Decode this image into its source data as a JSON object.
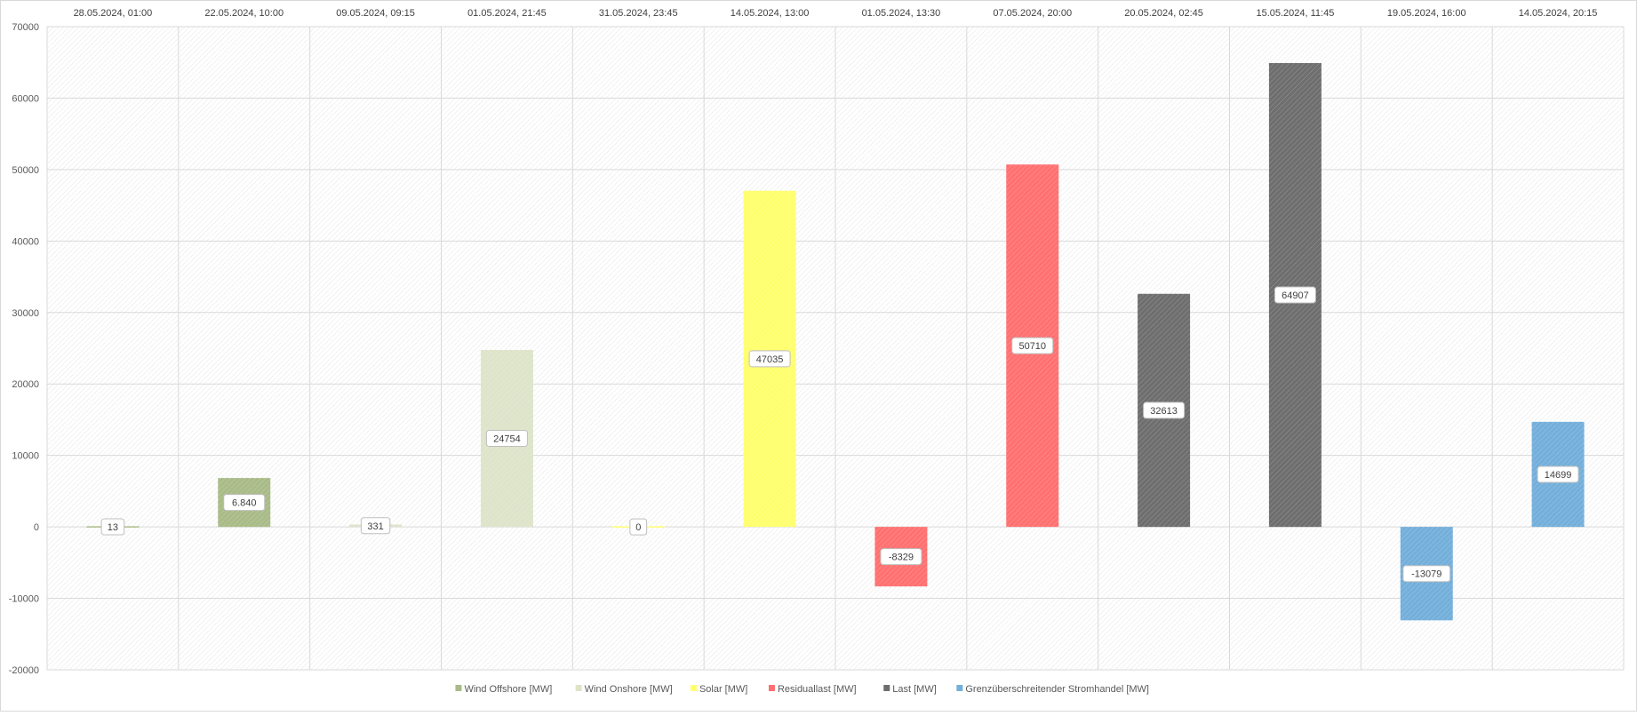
{
  "chart_data": {
    "type": "bar",
    "categories": [
      "28.05.2024, 01:00",
      "22.05.2024, 10:00",
      "09.05.2024, 09:15",
      "01.05.2024, 21:45",
      "31.05.2024, 23:45",
      "14.05.2024, 13:00",
      "01.05.2024, 13:30",
      "07.05.2024, 20:00",
      "20.05.2024, 02:45",
      "15.05.2024, 11:45",
      "19.05.2024, 16:00",
      "14.05.2024, 20:15"
    ],
    "values": [
      13,
      6840,
      331,
      24754,
      0,
      47035,
      -8329,
      50710,
      32613,
      64907,
      -13079,
      14699
    ],
    "data_labels": [
      "13",
      "6.840",
      "331",
      "24754",
      "0",
      "47035",
      "-8329",
      "50710",
      "32613",
      "64907",
      "-13079",
      "14699"
    ],
    "bar_series": [
      0,
      0,
      1,
      1,
      2,
      2,
      3,
      3,
      4,
      4,
      5,
      5
    ],
    "series": [
      {
        "name": "Wind Offshore [MW]",
        "color": "#a9bb87"
      },
      {
        "name": "Wind Onshore [MW]",
        "color": "#dde4c9"
      },
      {
        "name": "Solar [MW]",
        "color": "#ffff6e"
      },
      {
        "name": "Residuallast [MW]",
        "color": "#ff7070"
      },
      {
        "name": "Last [MW]",
        "color": "#6e6e6e"
      },
      {
        "name": "Grenzüberschreitender Stromhandel [MW]",
        "color": "#73afda"
      }
    ],
    "ylim": [
      -20000,
      70000
    ],
    "yticks": [
      -20000,
      -10000,
      0,
      10000,
      20000,
      30000,
      40000,
      50000,
      60000,
      70000
    ],
    "x_axis_position": "top",
    "grid": true,
    "legend_position": "bottom",
    "title": "",
    "xlabel": "",
    "ylabel": ""
  }
}
